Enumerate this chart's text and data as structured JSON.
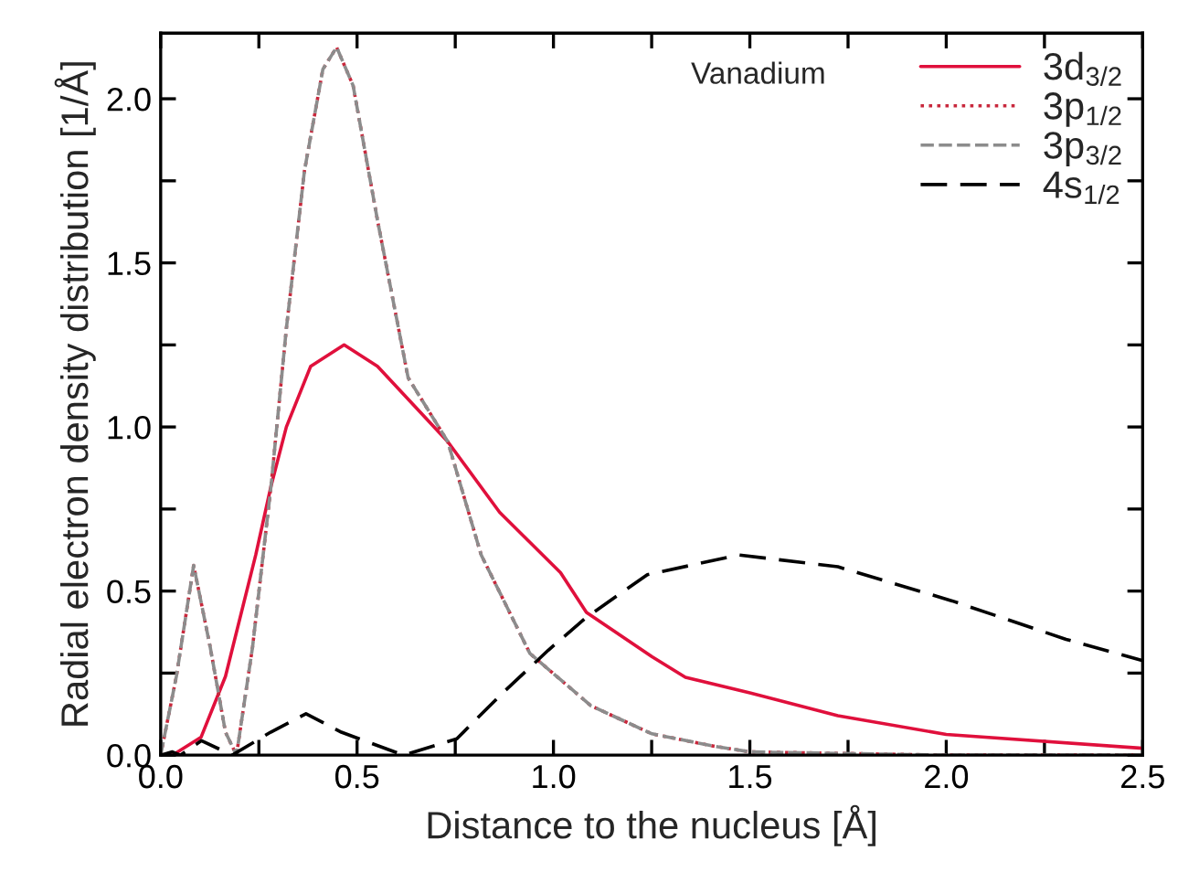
{
  "chart_data": {
    "type": "line",
    "xlabel": "Distance to the nucleus [Å]",
    "ylabel": "Radial electron density distribution [1/Å]",
    "annotations": [
      "Vanadium"
    ],
    "xlim": [
      0,
      2.5
    ],
    "ylim": [
      0,
      2.2
    ],
    "xticks": [
      {
        "value": 0,
        "label": "0.0"
      },
      {
        "value": 0.25,
        "label": null
      },
      {
        "value": 0.5,
        "label": "0.5"
      },
      {
        "value": 0.75,
        "label": null
      },
      {
        "value": 1.0,
        "label": "1.0"
      },
      {
        "value": 1.25,
        "label": null
      },
      {
        "value": 1.5,
        "label": "1.5"
      },
      {
        "value": 1.75,
        "label": null
      },
      {
        "value": 2.0,
        "label": "2.0"
      },
      {
        "value": 2.25,
        "label": null
      },
      {
        "value": 2.5,
        "label": "2.5"
      }
    ],
    "yticks": [
      {
        "value": 0,
        "label": "0.0"
      },
      {
        "value": 0.25,
        "label": null
      },
      {
        "value": 0.5,
        "label": "0.5"
      },
      {
        "value": 0.75,
        "label": null
      },
      {
        "value": 1.0,
        "label": "1.0"
      },
      {
        "value": 1.25,
        "label": null
      },
      {
        "value": 1.5,
        "label": "1.5"
      },
      {
        "value": 1.75,
        "label": null
      },
      {
        "value": 2.0,
        "label": "2.0"
      }
    ],
    "grid": false,
    "legend": "top right",
    "marker": "none",
    "series": [
      {
        "name": "3d$_{3/2}$",
        "color": "#e0103c",
        "line_style": "solid",
        "x": [
          0,
          0.03,
          0.103,
          0.165,
          0.242,
          0.281,
          0.32,
          0.382,
          0.467,
          0.552,
          0.731,
          0.863,
          1.018,
          1.084,
          1.251,
          1.336,
          1.5,
          1.724,
          2.0,
          2.5
        ],
        "values": [
          0,
          0,
          0.055,
          0.24,
          0.61,
          0.82,
          1.0,
          1.185,
          1.25,
          1.185,
          0.955,
          0.74,
          0.556,
          0.435,
          0.3,
          0.237,
          0.19,
          0.12,
          0.063,
          0.021
        ]
      },
      {
        "name": "3p$_{1/2}$",
        "color": "#c8283c",
        "line_style": "dotted",
        "x": [
          0,
          0.04,
          0.084,
          0.126,
          0.165,
          0.193,
          0.234,
          0.281,
          0.32,
          0.366,
          0.413,
          0.448,
          0.49,
          0.552,
          0.63,
          0.731,
          0.816,
          0.94,
          1.096,
          1.251,
          1.406,
          1.5,
          2.0,
          2.5
        ],
        "values": [
          0,
          0.24,
          0.578,
          0.33,
          0.07,
          0,
          0.33,
          0.82,
          1.3,
          1.78,
          2.09,
          2.157,
          2.04,
          1.63,
          1.15,
          0.955,
          0.61,
          0.31,
          0.15,
          0.065,
          0.028,
          0.01,
          0,
          0
        ]
      },
      {
        "name": "3p$_{3/2}$",
        "color": "#8c8c8c",
        "line_style": "dashed",
        "x": [
          0,
          0.04,
          0.084,
          0.126,
          0.165,
          0.193,
          0.234,
          0.281,
          0.32,
          0.366,
          0.413,
          0.448,
          0.49,
          0.552,
          0.63,
          0.731,
          0.816,
          0.94,
          1.096,
          1.251,
          1.406,
          1.5,
          2.0,
          2.5
        ],
        "values": [
          0,
          0.24,
          0.578,
          0.33,
          0.07,
          0,
          0.33,
          0.82,
          1.3,
          1.78,
          2.09,
          2.157,
          2.04,
          1.63,
          1.15,
          0.955,
          0.61,
          0.31,
          0.15,
          0.065,
          0.028,
          0.01,
          0,
          0
        ]
      },
      {
        "name": "4s$_{1/2}$",
        "color": "#000000",
        "line_style": "dashed",
        "x": [
          0,
          0.03,
          0.05,
          0.104,
          0.182,
          0.28,
          0.37,
          0.46,
          0.618,
          0.754,
          0.871,
          0.987,
          1.084,
          1.239,
          1.472,
          1.724,
          2.015,
          2.305,
          2.5
        ],
        "values": [
          0,
          0.01,
          0,
          0.044,
          0,
          0.07,
          0.126,
          0.07,
          0,
          0.05,
          0.19,
          0.32,
          0.42,
          0.55,
          0.61,
          0.574,
          0.47,
          0.353,
          0.288
        ]
      }
    ]
  }
}
